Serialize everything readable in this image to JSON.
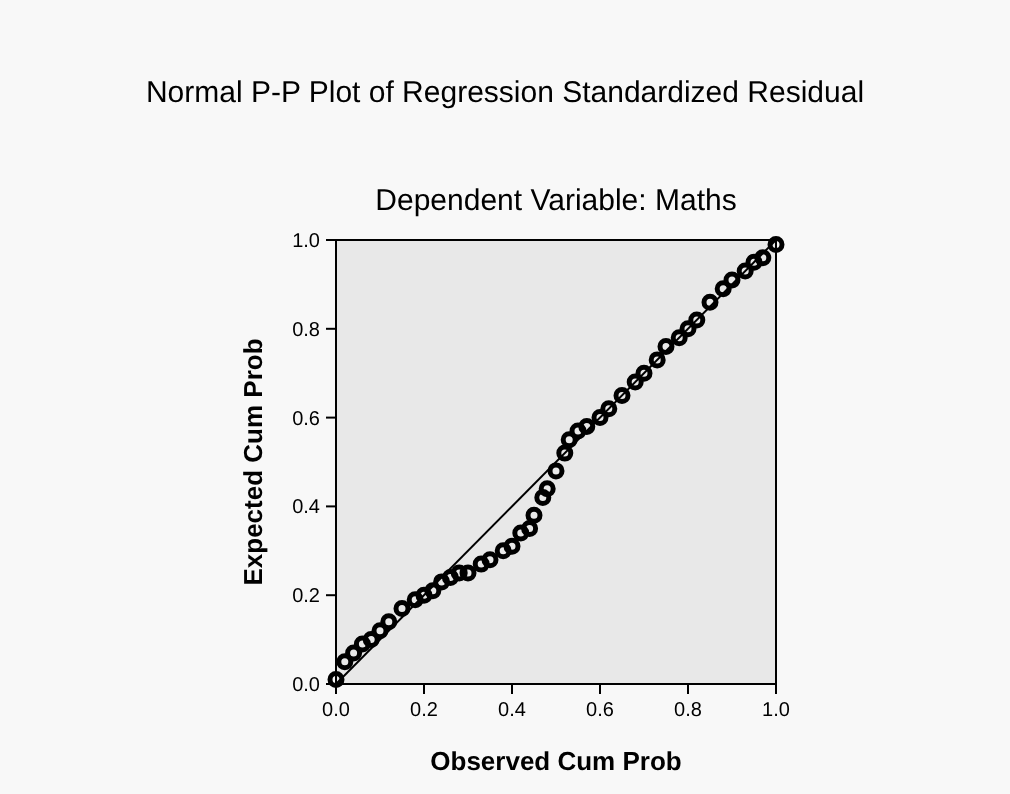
{
  "chart_data": {
    "type": "scatter",
    "title": "Normal P-P Plot of Regression Standardized Residual",
    "subtitle": "Dependent Variable: Maths",
    "xlabel": "Observed Cum Prob",
    "ylabel": "Expected Cum Prob",
    "xlim": [
      0,
      1
    ],
    "ylim": [
      0,
      1
    ],
    "xticks": [
      {
        "value": 0,
        "label": "0.0"
      },
      {
        "value": 0.2,
        "label": "0.2"
      },
      {
        "value": 0.4,
        "label": "0.4"
      },
      {
        "value": 0.6,
        "label": "0.6"
      },
      {
        "value": 0.8,
        "label": "0.8"
      },
      {
        "value": 1,
        "label": "1.0"
      }
    ],
    "yticks": [
      {
        "value": 0,
        "label": "0.0"
      },
      {
        "value": 0.2,
        "label": "0.2"
      },
      {
        "value": 0.4,
        "label": "0.4"
      },
      {
        "value": 0.6,
        "label": "0.6"
      },
      {
        "value": 0.8,
        "label": "0.8"
      },
      {
        "value": 1,
        "label": "1.0"
      }
    ],
    "grid": false,
    "series": [
      {
        "color": "#000000",
        "marker": "circle",
        "x": [
          0,
          0.02,
          0.04,
          0.06,
          0.08,
          0.1,
          0.12,
          0.15,
          0.18,
          0.2,
          0.22,
          0.24,
          0.26,
          0.28,
          0.3,
          0.33,
          0.35,
          0.38,
          0.4,
          0.42,
          0.44,
          0.45,
          0.47,
          0.48,
          0.5,
          0.52,
          0.53,
          0.55,
          0.57,
          0.6,
          0.62,
          0.65,
          0.68,
          0.7,
          0.73,
          0.75,
          0.78,
          0.8,
          0.82,
          0.85,
          0.88,
          0.9,
          0.93,
          0.95,
          0.97,
          1
        ],
        "values": [
          0.01,
          0.05,
          0.07,
          0.09,
          0.1,
          0.12,
          0.14,
          0.17,
          0.19,
          0.2,
          0.21,
          0.23,
          0.24,
          0.25,
          0.25,
          0.27,
          0.28,
          0.3,
          0.31,
          0.34,
          0.35,
          0.38,
          0.42,
          0.44,
          0.48,
          0.52,
          0.55,
          0.57,
          0.58,
          0.6,
          0.62,
          0.65,
          0.68,
          0.7,
          0.73,
          0.76,
          0.78,
          0.8,
          0.82,
          0.86,
          0.89,
          0.91,
          0.93,
          0.95,
          0.96,
          0.99
        ]
      },
      {
        "type": "line",
        "color": "#000000",
        "x": [
          0,
          1
        ],
        "values": [
          0,
          1
        ]
      }
    ]
  }
}
